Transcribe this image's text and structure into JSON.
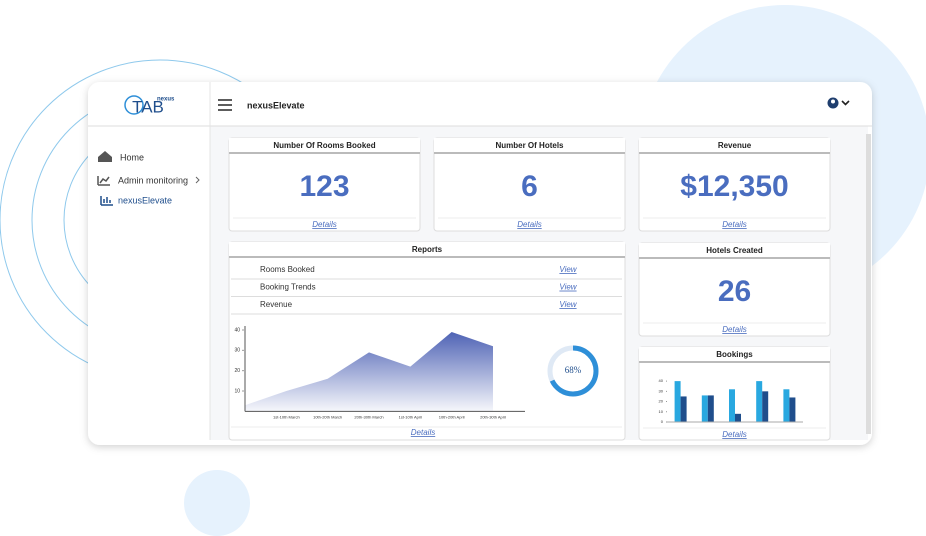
{
  "header": {
    "logo_small": "nexus",
    "logo": "TAB",
    "app": "nexusElevate"
  },
  "sidebar": {
    "items": [
      "Home",
      "Admin monitoring",
      "nexusElevate"
    ]
  },
  "cards": [
    {
      "title": "Number Of Rooms Booked",
      "value": "123",
      "link": "Details"
    },
    {
      "title": "Number Of Hotels",
      "value": "6",
      "link": "Details"
    },
    {
      "title": "Revenue",
      "value": "$12,350",
      "link": "Details"
    },
    {
      "title": "Hotels Created",
      "value": "26",
      "link": "Details"
    }
  ],
  "reports": {
    "title": "Reports",
    "rows": [
      {
        "label": "Rooms Booked",
        "link": "View"
      },
      {
        "label": "Booking Trends",
        "link": "View"
      },
      {
        "label": "Revenue",
        "link": "View"
      }
    ],
    "link": "Details",
    "chart": {
      "type": "area",
      "categories": [
        null,
        "1st-10th March",
        "10th-20th March",
        "20th-30th March",
        "1st-10th April",
        "10th-20th April",
        "20th-30th April"
      ],
      "values": [
        3,
        10,
        16,
        29,
        22,
        39,
        32
      ],
      "ylim": [
        0,
        40
      ],
      "yticks": [
        10,
        20,
        30,
        40
      ],
      "color": "#4f63b5"
    },
    "gauge": {
      "type": "donut",
      "value": 68,
      "label": "68%",
      "color": "#2e8fd8"
    }
  },
  "bookings": {
    "title": "Bookings",
    "link": "Details",
    "chart": {
      "type": "bar",
      "categories": [
        null,
        null,
        null,
        null,
        null
      ],
      "series": [
        {
          "color": "#29a8e0",
          "values": [
            40,
            26,
            32,
            40,
            32
          ]
        },
        {
          "color": "#1f4e8c",
          "values": [
            25,
            26,
            8,
            30,
            24
          ]
        }
      ],
      "ylim": [
        0,
        45
      ],
      "yticks": [
        0,
        10,
        20,
        30,
        40
      ]
    }
  }
}
